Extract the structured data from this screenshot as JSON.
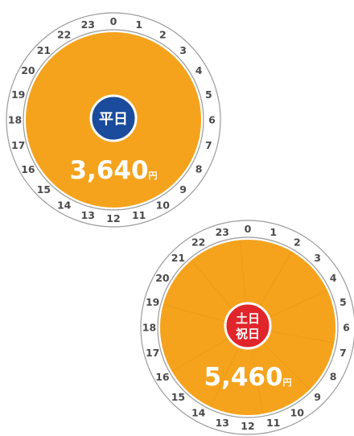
{
  "colors": {
    "dial_fill": "#F5A31D",
    "ring_stroke": "#9A9A9A",
    "weekday_badge": "#1A4B9C",
    "holiday_badge": "#E0252B",
    "badge_outline": "#FFFFFF",
    "label_text": "#4A4A4A",
    "price_text": "#FFFFFF"
  },
  "dials": [
    {
      "badge_lines": [
        "平日"
      ],
      "badge_color": "#1A4B9C",
      "price": "3,640",
      "unit": "円",
      "hours": [
        "0",
        "1",
        "2",
        "3",
        "4",
        "5",
        "6",
        "7",
        "8",
        "9",
        "10",
        "11",
        "12",
        "13",
        "14",
        "15",
        "16",
        "17",
        "18",
        "19",
        "20",
        "21",
        "22",
        "23"
      ]
    },
    {
      "badge_lines": [
        "土日",
        "祝日"
      ],
      "badge_color": "#E0252B",
      "price": "5,460",
      "unit": "円",
      "hours": [
        "0",
        "1",
        "2",
        "3",
        "4",
        "5",
        "6",
        "7",
        "8",
        "9",
        "10",
        "11",
        "12",
        "13",
        "14",
        "15",
        "16",
        "17",
        "18",
        "19",
        "20",
        "21",
        "22",
        "23"
      ]
    }
  ]
}
